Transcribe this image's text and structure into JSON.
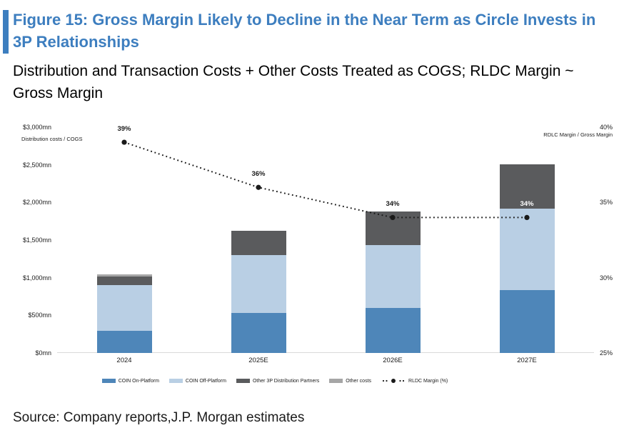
{
  "figure": {
    "title": "Figure 15: Gross Margin Likely to Decline in the Near Term as Circle Invests in 3P Relationships",
    "subtitle": "Distribution and Transaction Costs + Other Costs Treated as COGS; RLDC Margin ~ Gross Margin",
    "source": "Source: Company reports,J.P. Morgan estimates",
    "accent_color": "#3d7ebf",
    "title_color": "#3d7ebf"
  },
  "chart_data": {
    "type": "bar",
    "subtype": "stacked-bars-with-dotted-line",
    "categories": [
      "2024",
      "2025E",
      "2026E",
      "2027E"
    ],
    "series": [
      {
        "name": "COIN On-Platform",
        "color": "#4e86b9",
        "values": [
          290,
          530,
          600,
          840
        ]
      },
      {
        "name": "COIN Off-Platform",
        "color": "#b9cfe4",
        "values": [
          610,
          775,
          830,
          1080
        ]
      },
      {
        "name": "Other 3P Distribution Partners",
        "color": "#5a5b5d",
        "values": [
          120,
          320,
          450,
          590
        ]
      },
      {
        "name": "Other costs",
        "color": "#a6a6a6",
        "values": [
          25,
          0,
          0,
          0
        ]
      }
    ],
    "line_series": {
      "name": "RLDC Margin (%)",
      "color": "#1a1a1a",
      "values": [
        39,
        36,
        34,
        34
      ],
      "labels": [
        "39%",
        "36%",
        "34%",
        "34%"
      ],
      "label_colors": [
        "#1a1a1a",
        "#1a1a1a",
        "#1a1a1a",
        "#ffffff"
      ]
    },
    "left_axis": {
      "caption": "Distribution costs / COGS",
      "range": [
        0,
        3000
      ],
      "ticks": [
        {
          "value": 0,
          "label": "$0mn"
        },
        {
          "value": 500,
          "label": "$500mn"
        },
        {
          "value": 1000,
          "label": "$1,000mn"
        },
        {
          "value": 1500,
          "label": "$1,500mn"
        },
        {
          "value": 2000,
          "label": "$2,000mn"
        },
        {
          "value": 2500,
          "label": "$2,500mn"
        },
        {
          "value": 3000,
          "label": "$3,000mn"
        }
      ]
    },
    "right_axis": {
      "caption": "RDLC Margin / Gross Margin",
      "range": [
        25,
        40
      ],
      "ticks": [
        {
          "value": 25,
          "label": "25%"
        },
        {
          "value": 30,
          "label": "30%"
        },
        {
          "value": 35,
          "label": "35%"
        },
        {
          "value": 40,
          "label": "40%"
        }
      ]
    },
    "legend": [
      {
        "label": "COIN On-Platform",
        "marker": "swatch",
        "color": "#4e86b9"
      },
      {
        "label": "COIN Off-Platform",
        "marker": "swatch",
        "color": "#b9cfe4"
      },
      {
        "label": "Other 3P Distribution Partners",
        "marker": "swatch",
        "color": "#5a5b5d"
      },
      {
        "label": "Other costs",
        "marker": "swatch",
        "color": "#a6a6a6"
      },
      {
        "label": "RLDC Margin (%)",
        "marker": "dotted-line",
        "color": "#1a1a1a"
      }
    ],
    "legend_position": "bottom",
    "grid": false
  }
}
